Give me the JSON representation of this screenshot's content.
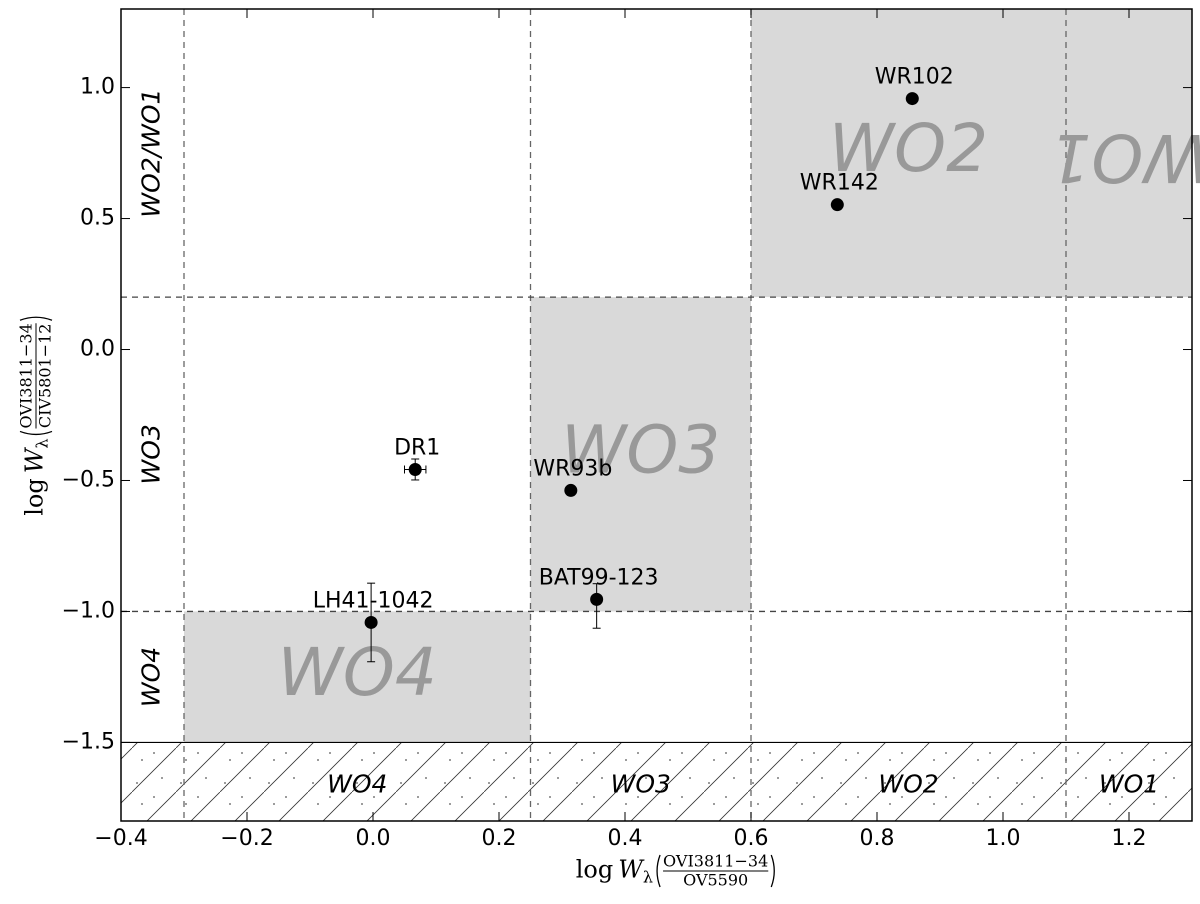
{
  "chart_data": {
    "type": "scatter",
    "xlim": [
      -0.4,
      1.3
    ],
    "ylim": [
      -1.8,
      1.3
    ],
    "xticks": [
      {
        "value": -0.4,
        "label": "−0.4"
      },
      {
        "value": -0.2,
        "label": "−0.2"
      },
      {
        "value": 0.0,
        "label": "0.0"
      },
      {
        "value": 0.2,
        "label": "0.2"
      },
      {
        "value": 0.4,
        "label": "0.4"
      },
      {
        "value": 0.6,
        "label": "0.6"
      },
      {
        "value": 0.8,
        "label": "0.8"
      },
      {
        "value": 1.0,
        "label": "1.0"
      },
      {
        "value": 1.2,
        "label": "1.2"
      }
    ],
    "yticks": [
      {
        "value": 1.0,
        "label": "1.0"
      },
      {
        "value": 0.5,
        "label": "0.5"
      },
      {
        "value": 0.0,
        "label": "0.0"
      },
      {
        "value": -0.5,
        "label": "−0.5"
      },
      {
        "value": -1.0,
        "label": "−1.0"
      },
      {
        "value": -1.5,
        "label": "−1.5"
      }
    ],
    "xlabel": {
      "prefix": "log",
      "var": "W",
      "sub": "λ",
      "numerator": "OVI3811−34",
      "denominator": "OV5590"
    },
    "ylabel": {
      "prefix": "log",
      "var": "W",
      "sub": "λ",
      "numerator": "OVI3811−34",
      "denominator": "CIV5801−12"
    },
    "color": "#000000",
    "x": [
      0.856,
      0.737,
      0.067,
      0.314,
      0.355,
      -0.003
    ],
    "values": [
      0.958,
      0.553,
      -0.458,
      -0.538,
      -0.954,
      -1.042
    ],
    "point_labels": [
      "WR102",
      "WR142",
      "DR1",
      "WR93b",
      "BAT99-123",
      "LH41-1042"
    ],
    "xerr": [
      null,
      null,
      0.017,
      null,
      null,
      null
    ],
    "yerr_minus": [
      null,
      null,
      0.04,
      null,
      0.11,
      0.15
    ],
    "yerr_plus": [
      null,
      null,
      0.04,
      null,
      0.06,
      0.15
    ],
    "classes": [
      {
        "name": "WO4",
        "x": [
          -0.3,
          0.25
        ],
        "y": [
          -1.5,
          -1.0
        ]
      },
      {
        "name": "WO3",
        "x": [
          0.25,
          0.6
        ],
        "y": [
          -1.0,
          0.2
        ]
      },
      {
        "name": "WO2",
        "x": [
          0.6,
          1.1
        ],
        "y": [
          0.2,
          1.3
        ]
      },
      {
        "name": "WO1",
        "x": [
          1.1,
          1.3
        ],
        "y": [
          0.2,
          1.3
        ],
        "rotated": true
      }
    ],
    "side_labels": [
      {
        "text": "WO2/WO1",
        "y": [
          0.2,
          1.3
        ]
      },
      {
        "text": "WO3",
        "y": [
          -1.0,
          0.2
        ]
      },
      {
        "text": "WO4",
        "y": [
          -1.5,
          -1.0
        ]
      }
    ],
    "vlines": [
      -0.3,
      0.25,
      0.6,
      1.1
    ],
    "hlines": [
      0.2,
      -1.0
    ],
    "hatch_below": -1.5,
    "region_color": "#d9d9d9"
  }
}
